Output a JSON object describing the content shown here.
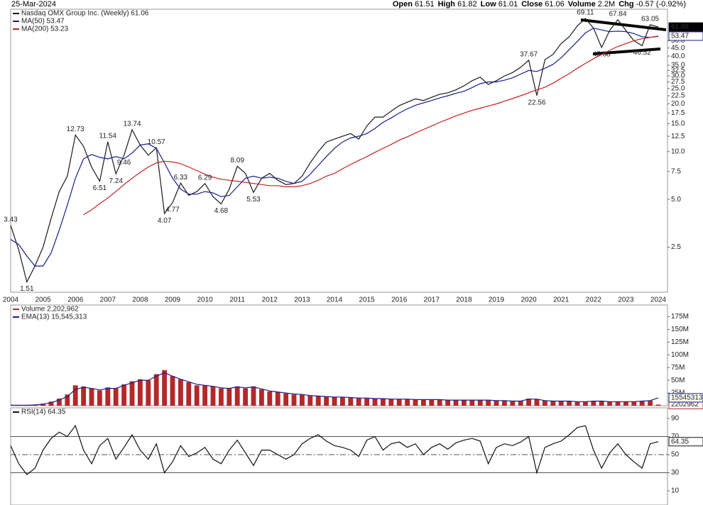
{
  "header": {
    "date": "25-Mar-2024",
    "quote": [
      {
        "label": "Open",
        "value": "61.51"
      },
      {
        "label": "High",
        "value": "61.82"
      },
      {
        "label": "Low",
        "value": "61.01"
      },
      {
        "label": "Close",
        "value": "61.06"
      },
      {
        "label": "Volume",
        "value": "2.2M"
      },
      {
        "label": "Chg",
        "value": "-0.57 (-0.92%)"
      }
    ]
  },
  "chart_data": [
    {
      "type": "line",
      "log_scale": true,
      "categories": [
        "2004",
        null,
        null,
        null,
        "2005",
        null,
        null,
        null,
        "2006",
        null,
        null,
        null,
        "2007",
        null,
        null,
        null,
        "2008",
        null,
        null,
        null,
        "2009",
        null,
        null,
        null,
        "2010",
        null,
        null,
        null,
        "2011",
        null,
        null,
        null,
        "2012",
        null,
        null,
        null,
        "2013",
        null,
        null,
        null,
        "2014",
        null,
        null,
        null,
        "2015",
        null,
        null,
        null,
        "2016",
        null,
        null,
        null,
        "2017",
        null,
        null,
        null,
        "2018",
        null,
        null,
        null,
        "2019",
        null,
        null,
        null,
        "2020",
        null,
        null,
        null,
        "2021",
        null,
        null,
        null,
        "2022",
        null,
        null,
        null,
        "2023",
        null,
        null,
        null,
        "2024"
      ],
      "ylim": [
        1.3,
        79
      ],
      "yticks": [
        2.5,
        {
          "value": 5,
          "label": "5.0"
        },
        7.5,
        {
          "value": 10,
          "label": "10.0"
        },
        12.5,
        {
          "value": 15,
          "label": "15.0"
        },
        17.5,
        {
          "value": 20,
          "label": "20.0"
        },
        22.5,
        {
          "value": 25,
          "label": "25.0"
        },
        27.5,
        {
          "value": 30,
          "label": "30.0"
        },
        32.5,
        {
          "value": 35,
          "label": "35.0"
        },
        {
          "value": 40,
          "label": "40.0"
        },
        {
          "value": 45,
          "label": "45.0"
        },
        {
          "value": 50,
          "label": "50.0"
        }
      ],
      "series": [
        {
          "name": "Nasdaq OMX Group Inc. (Weekly) 61.06",
          "color": "#1a1a1a",
          "tag": true,
          "values": [
            3.43,
            2.4,
            1.51,
            1.9,
            2.5,
            3.8,
            5.6,
            7.0,
            12.73,
            10.8,
            8.0,
            6.51,
            11.54,
            7.24,
            9.46,
            13.74,
            11.0,
            9.5,
            10.57,
            4.07,
            4.77,
            6.33,
            5.3,
            5.6,
            6.29,
            5.2,
            4.68,
            5.8,
            8.09,
            7.3,
            5.53,
            6.8,
            7.3,
            6.6,
            6.2,
            6.3,
            7.0,
            8.5,
            10.0,
            11.5,
            12.0,
            12.5,
            13.0,
            12.0,
            14.5,
            16.5,
            16.5,
            18.0,
            19.5,
            20.5,
            21.5,
            21.0,
            22.0,
            23.0,
            23.5,
            24.5,
            26.0,
            28.0,
            29.5,
            26.5,
            28.0,
            30.0,
            31.5,
            34.0,
            37.67,
            22.56,
            38.0,
            41.0,
            48.0,
            53.0,
            62.0,
            69.11,
            60.0,
            45.38,
            58.0,
            67.84,
            58.0,
            50.0,
            46.52,
            63.05,
            61.06
          ],
          "value_labels": [
            "3.43",
            null,
            "1.51",
            null,
            null,
            null,
            null,
            null,
            "12.73",
            null,
            null,
            "6.51",
            "11.54",
            "7.24",
            "9.46",
            "13.74",
            null,
            null,
            "10.57",
            "4.07",
            "4.77",
            "6.33",
            null,
            null,
            "6.29",
            null,
            "4.68",
            null,
            "8.09",
            null,
            "5.53",
            null,
            null,
            null,
            null,
            null,
            null,
            null,
            null,
            null,
            null,
            null,
            null,
            null,
            null,
            null,
            null,
            null,
            null,
            null,
            null,
            null,
            null,
            null,
            null,
            null,
            null,
            null,
            null,
            null,
            null,
            null,
            null,
            null,
            "37.67",
            "22.56",
            null,
            null,
            null,
            null,
            null,
            "69.11",
            null,
            "45.38",
            null,
            "67.84",
            null,
            null,
            "46.52",
            "63.05",
            null
          ]
        },
        {
          "name": "MA(50) 53.47",
          "color": "#1c1c8c",
          "tag": true,
          "values": [
            2.8,
            2.6,
            2.2,
            1.9,
            1.9,
            2.3,
            3.2,
            4.6,
            6.8,
            9.0,
            9.6,
            9.2,
            9.0,
            9.3,
            9.0,
            9.8,
            11.0,
            11.2,
            10.5,
            8.5,
            6.8,
            5.8,
            5.4,
            5.4,
            5.6,
            5.5,
            5.2,
            5.3,
            6.0,
            6.8,
            7.0,
            6.8,
            6.9,
            6.8,
            6.5,
            6.3,
            6.5,
            7.2,
            8.2,
            9.3,
            10.5,
            11.5,
            12.2,
            12.5,
            13.0,
            14.0,
            15.3,
            16.3,
            17.5,
            18.6,
            19.6,
            20.3,
            21.0,
            21.8,
            22.5,
            23.3,
            24.0,
            25.3,
            26.8,
            27.5,
            27.5,
            28.2,
            29.2,
            30.8,
            32.5,
            32.0,
            33.5,
            35.5,
            39.0,
            44.0,
            49.5,
            56.0,
            60.0,
            58.5,
            57.0,
            57.5,
            57.0,
            55.5,
            53.0,
            52.5,
            53.47
          ]
        },
        {
          "name": "MA(200) 53.23",
          "color": "#c42020",
          "values": [
            null,
            null,
            null,
            null,
            null,
            null,
            null,
            null,
            null,
            4.0,
            4.3,
            4.7,
            5.1,
            5.6,
            6.2,
            6.8,
            7.4,
            8.0,
            8.5,
            8.7,
            8.6,
            8.4,
            8.0,
            7.6,
            7.2,
            6.9,
            6.7,
            6.6,
            6.5,
            6.4,
            6.3,
            6.2,
            6.1,
            6.1,
            6.0,
            6.0,
            6.1,
            6.3,
            6.6,
            7.0,
            7.3,
            7.8,
            8.3,
            8.8,
            9.3,
            9.9,
            10.5,
            11.1,
            11.8,
            12.4,
            13.1,
            13.8,
            14.5,
            15.3,
            16.0,
            16.8,
            17.5,
            18.2,
            18.8,
            19.4,
            20.0,
            20.8,
            21.6,
            22.5,
            23.5,
            24.5,
            25.5,
            27.0,
            29.0,
            31.0,
            33.5,
            36.0,
            38.5,
            41.0,
            43.5,
            46.0,
            48.0,
            50.0,
            51.5,
            52.5,
            53.23
          ]
        }
      ]
    },
    {
      "type": "bar",
      "ylim": [
        0,
        198000000
      ],
      "yticks": [
        {
          "value": 25000000,
          "label": "25M"
        },
        {
          "value": 50000000,
          "label": "50M"
        },
        {
          "value": 75000000,
          "label": "75M"
        },
        {
          "value": 100000000,
          "label": "100M"
        },
        {
          "value": 125000000,
          "label": "125M"
        },
        {
          "value": 150000000,
          "label": "150M"
        },
        {
          "value": 175000000,
          "label": "175M"
        }
      ],
      "series": [
        {
          "name": "Volume 2,202,962",
          "type": "bar",
          "color": "#b52828",
          "tag": true,
          "values": [
            1000000,
            1000000,
            1000000,
            2000000,
            4000000,
            8000000,
            14000000,
            22000000,
            40000000,
            38000000,
            34000000,
            30000000,
            36000000,
            34000000,
            42000000,
            48000000,
            52000000,
            50000000,
            62000000,
            70000000,
            58000000,
            52000000,
            46000000,
            40000000,
            40000000,
            38000000,
            34000000,
            34000000,
            38000000,
            34000000,
            38000000,
            32000000,
            28000000,
            27000000,
            24000000,
            22000000,
            22000000,
            20000000,
            19000000,
            18000000,
            17000000,
            17000000,
            16000000,
            15000000,
            15000000,
            14000000,
            14000000,
            13000000,
            13000000,
            13000000,
            12000000,
            12000000,
            12000000,
            12000000,
            11000000,
            11000000,
            11000000,
            11000000,
            11000000,
            11000000,
            10000000,
            10000000,
            9000000,
            9000000,
            14000000,
            13000000,
            10000000,
            9000000,
            9000000,
            9000000,
            8000000,
            8000000,
            9000000,
            9000000,
            8000000,
            8000000,
            8000000,
            8000000,
            9000000,
            10000000,
            2202962
          ]
        },
        {
          "name": "EMA(13) 15,545,313",
          "type": "line",
          "color": "#1c1c8c",
          "tag": true,
          "values": [
            1000000,
            1000000,
            1000000,
            1500000,
            3000000,
            6000000,
            11000000,
            18000000,
            32000000,
            36000000,
            34000000,
            31000000,
            34000000,
            34000000,
            40000000,
            45000000,
            50000000,
            50000000,
            58000000,
            65000000,
            58000000,
            52000000,
            47000000,
            42000000,
            40000000,
            38000000,
            35000000,
            34000000,
            37000000,
            35000000,
            37000000,
            33000000,
            29000000,
            27000000,
            25000000,
            23000000,
            22000000,
            20000000,
            19000000,
            18000000,
            17000000,
            17000000,
            16000000,
            15000000,
            15000000,
            14000000,
            14000000,
            13000000,
            13000000,
            13000000,
            12000000,
            12000000,
            12000000,
            12000000,
            11000000,
            11000000,
            11000000,
            11000000,
            11000000,
            11000000,
            10000000,
            10000000,
            9000000,
            9000000,
            13000000,
            13000000,
            10000000,
            9000000,
            9000000,
            9000000,
            8000000,
            8000000,
            9000000,
            9000000,
            8000000,
            8000000,
            8000000,
            8000000,
            9000000,
            10000000,
            15545313
          ]
        }
      ]
    },
    {
      "type": "line",
      "ylim": [
        -5.7,
        101.8
      ],
      "yticks": [
        10,
        30,
        50,
        70,
        90
      ],
      "hlines": [
        30,
        50,
        70
      ],
      "hline_styles": [
        "solid",
        "dashed",
        "solid"
      ],
      "series": [
        {
          "name": "RSI(14) 64.35",
          "color": "#111111",
          "tag": true,
          "values": [
            60,
            40,
            28,
            35,
            55,
            68,
            75,
            70,
            82,
            55,
            40,
            60,
            68,
            45,
            58,
            72,
            55,
            45,
            62,
            30,
            42,
            60,
            48,
            52,
            58,
            45,
            40,
            55,
            66,
            52,
            38,
            55,
            55,
            50,
            45,
            50,
            62,
            68,
            72,
            65,
            60,
            58,
            55,
            48,
            66,
            70,
            55,
            62,
            64,
            58,
            62,
            50,
            58,
            62,
            56,
            63,
            66,
            68,
            65,
            40,
            58,
            62,
            60,
            64,
            70,
            30,
            58,
            62,
            65,
            72,
            80,
            82,
            55,
            35,
            52,
            62,
            50,
            42,
            35,
            62,
            64.35
          ]
        }
      ]
    }
  ]
}
